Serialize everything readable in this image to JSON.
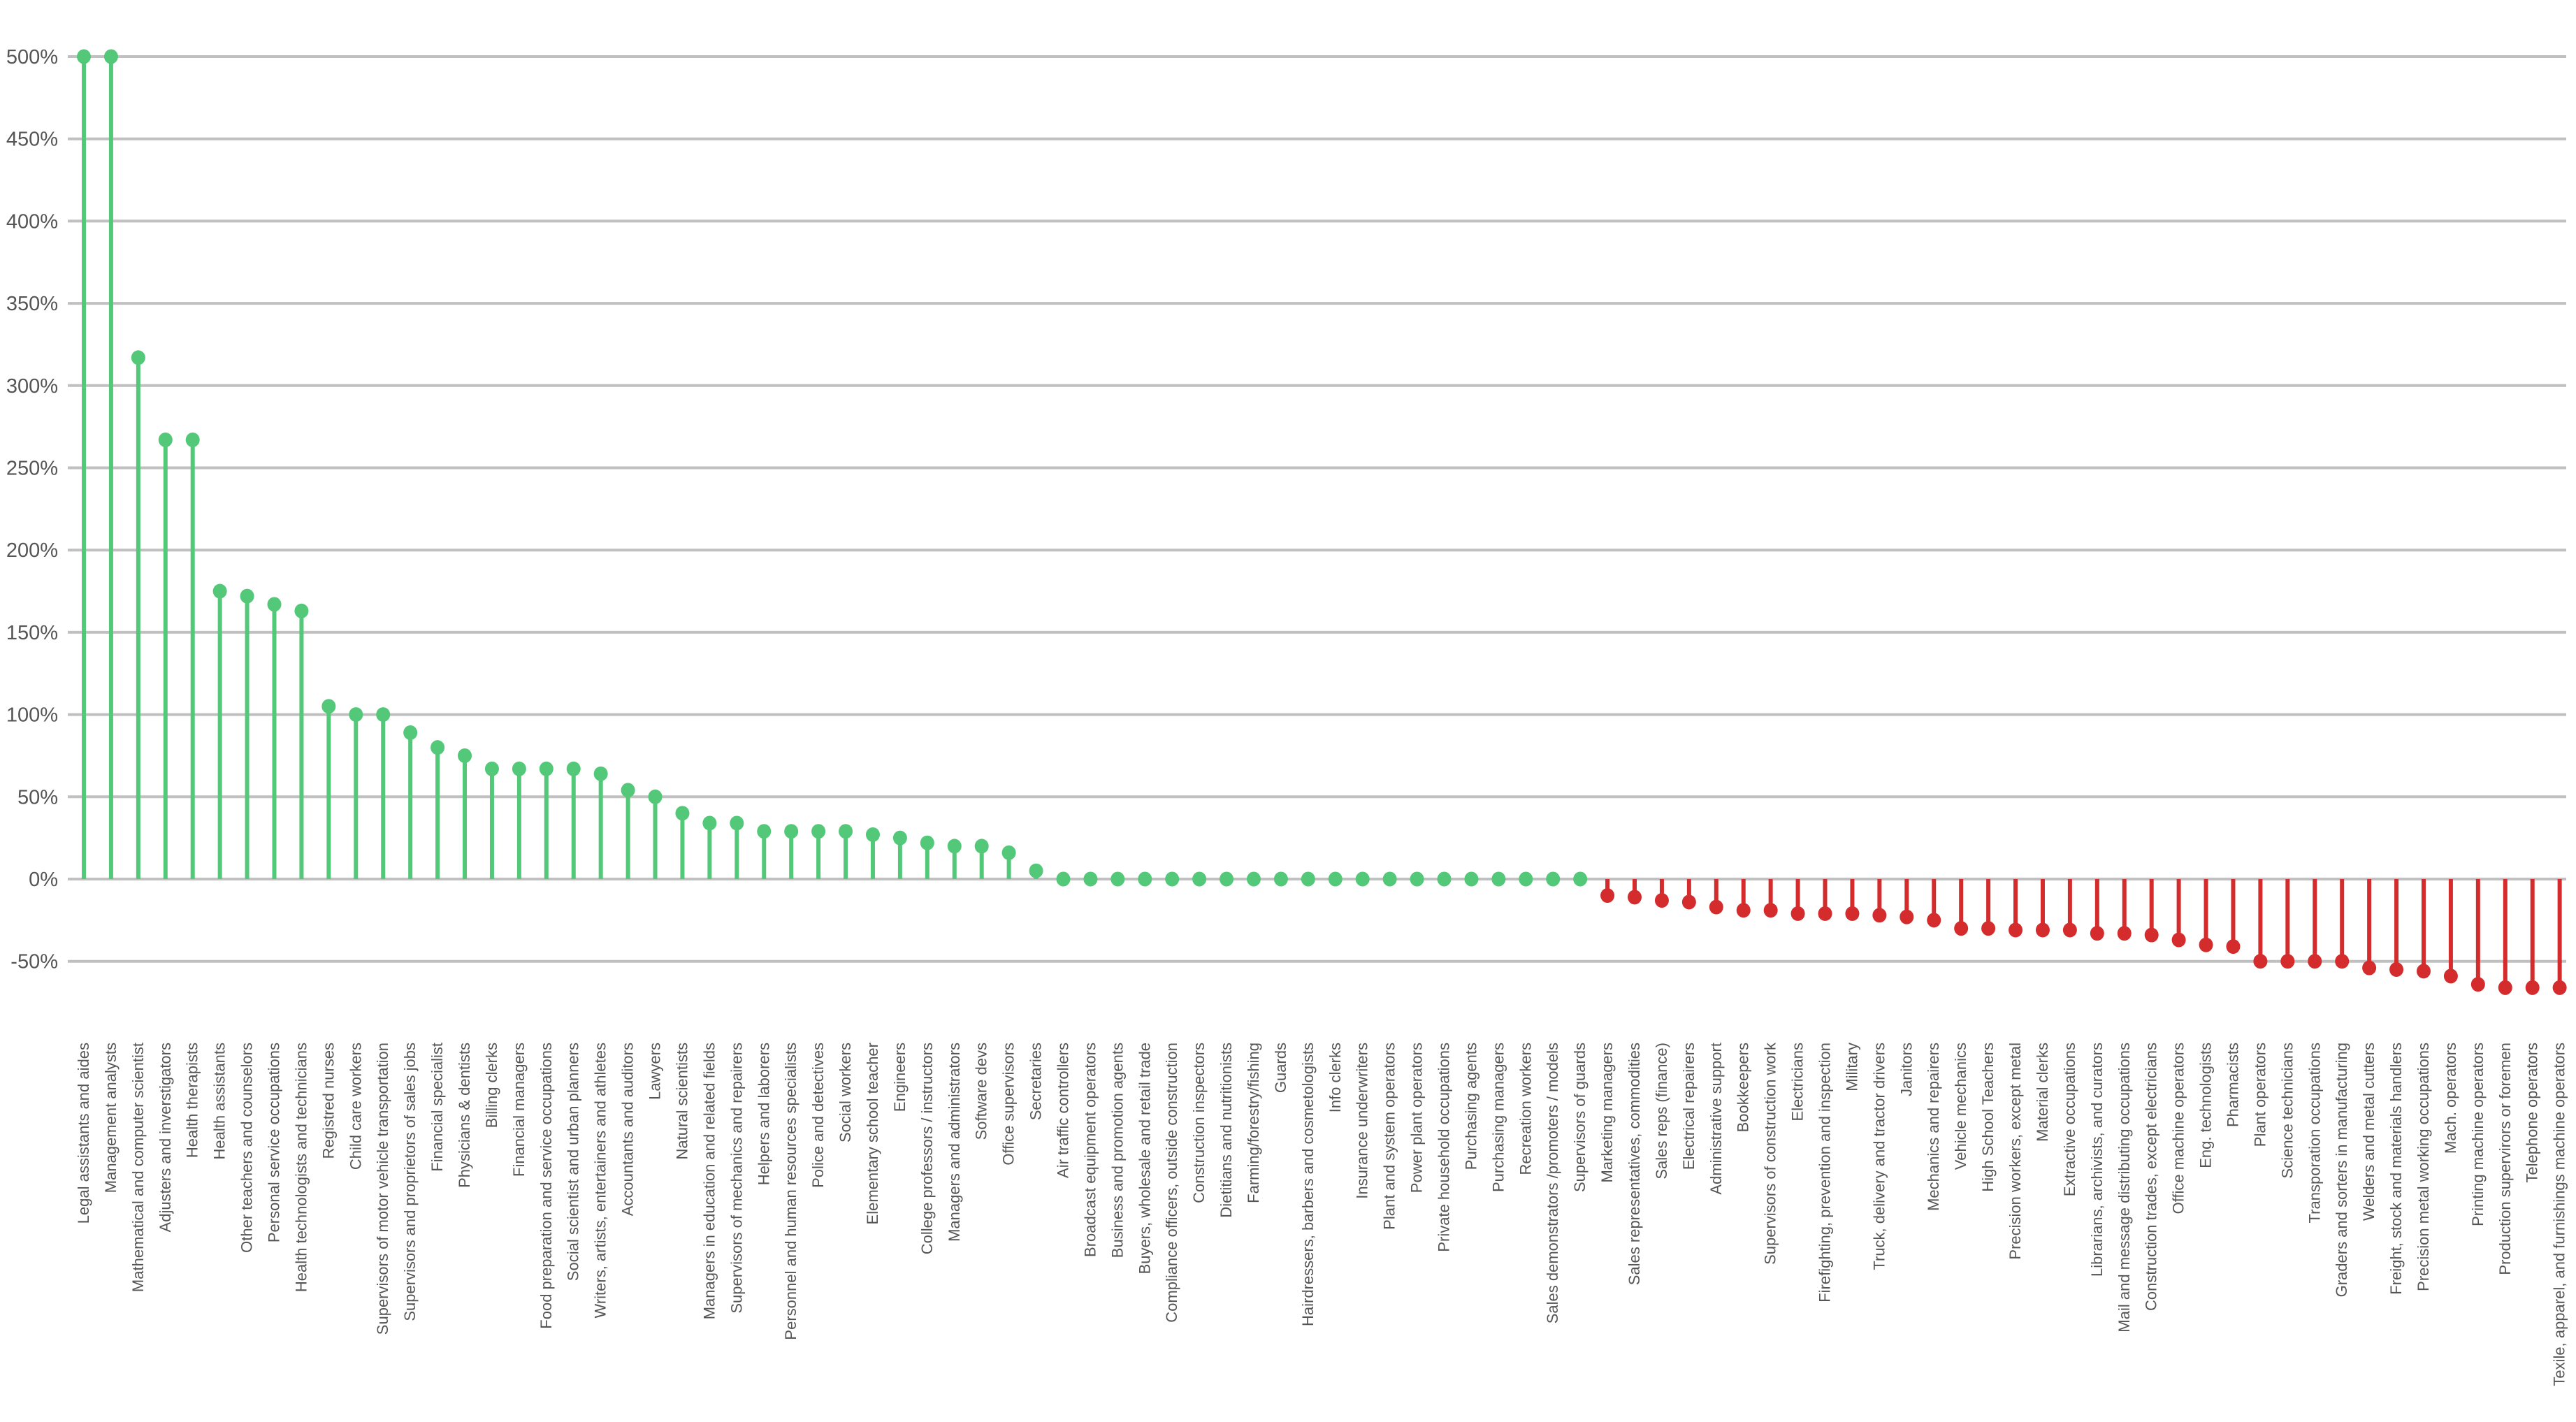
{
  "chart_data": {
    "type": "lollipop",
    "title": "",
    "xlabel": "",
    "ylabel": "",
    "ylim": [
      -60,
      500
    ],
    "yticks": [
      -50,
      0,
      50,
      100,
      150,
      200,
      250,
      300,
      350,
      400,
      450,
      500
    ],
    "ytick_labels": [
      "-50%",
      "0%",
      "50%",
      "100%",
      "150%",
      "200%",
      "250%",
      "300%",
      "350%",
      "400%",
      "450%",
      "500%"
    ],
    "grid": true,
    "legend": null,
    "colors": {
      "positive": "#52c878",
      "negative": "#d42c2c",
      "grid": "#c0c0c0",
      "text": "#555555"
    },
    "categories": [
      "Legal assistants and aides",
      "Management analysts",
      "Mathematical and computer scientist",
      "Adjusters and inverstigators",
      "Health therapists",
      "Health assistants",
      "Other teachers and counselors",
      "Personal service occupations",
      "Health technologists and technicians",
      "Registred nurses",
      "Child care workers",
      "Supervisors of motor vehicle transportation",
      "Supervisors and proprietors of sales jobs",
      "Financial specialist",
      "Physicians & dentists",
      "Billing clerks",
      "Financial managers",
      "Food preparation and service occupations",
      "Social scientist and urban planners",
      "Writers, artists, entertainers and athletes",
      "Accountants and auditors",
      "Lawyers",
      "Natural scientists",
      "Managers in education and related fields",
      "Supervisors of mechanics and repairers",
      "Helpers and laborers",
      "Personnel and human resources specialists",
      "Police and detectives",
      "Social workers",
      "Elementary school teacher",
      "Engineers",
      "College professors / instructors",
      "Managers and administrators",
      "Software devs",
      "Office supervisors",
      "Secretaries",
      "Air traffic controllers",
      "Broadcast equipment operators",
      "Business and promotion agents",
      "Buyers, wholesale and retail trade",
      "Compliance officers, outside construction",
      "Construction inspectors",
      "Dietitians and nutritionists",
      "Farming/forestry/fishing",
      "Guards",
      "Hairdressers, barbers and cosmetologists",
      "Info clerks",
      "Insurance underwriters",
      "Plant and system operators",
      "Power plant operators",
      "Private household occupations",
      "Purchasing agents",
      "Purchasing managers",
      "Recreation workers",
      "Sales demonstrators /promoters / models",
      "Supervisors of guards",
      "Marketing managers",
      "Sales representatives, commodities",
      "Sales reps (finance)",
      "Electrical repairers",
      "Administrative support",
      "Bookkeepers",
      "Supervisors of construction work",
      "Electricians",
      "Firefighting, prevention and inspection",
      "Military",
      "Truck, delivery and tractor drivers",
      "Janitors",
      "Mechanics and repairers",
      "Vehicle mechanics",
      "High School Teachers",
      "Precision workers, except metal",
      "Material clerks",
      "Extractive occupations",
      "Librarians, archivists, and curators",
      "Mail and message distributing occupations",
      "Construction trades, except electricians",
      "Office machine operators",
      "Eng. technologists",
      "Pharmacists",
      "Plant operators",
      "Science technicians",
      "Transporation occupations",
      "Graders and sorters in manufacturing",
      "Welders and metal cutters",
      "Freight, stock and materials handlers",
      "Precision metal working occupations",
      "Mach. operators",
      "Printing machine operators",
      "Production supervirors or foremen",
      "Telephone operators",
      "Texile, apparel, and furnishings machine operators"
    ],
    "values": [
      500,
      500,
      317,
      267,
      267,
      175,
      172,
      167,
      163,
      105,
      100,
      100,
      89,
      80,
      75,
      67,
      67,
      67,
      67,
      64,
      54,
      50,
      40,
      34,
      34,
      29,
      29,
      29,
      29,
      27,
      25,
      22,
      20,
      20,
      16,
      5,
      0,
      0,
      0,
      0,
      0,
      0,
      0,
      0,
      0,
      0,
      0,
      0,
      0,
      0,
      0,
      0,
      0,
      0,
      0,
      0,
      -10,
      -11,
      -13,
      -14,
      -17,
      -19,
      -19,
      -21,
      -21,
      -21,
      -22,
      -23,
      -25,
      -30,
      -30,
      -31,
      -31,
      -31,
      -33,
      -33,
      -34,
      -37,
      -40,
      -41,
      -50,
      -50,
      -50,
      -50,
      -54,
      -55,
      -56,
      -59,
      -64,
      -66,
      -66,
      -66
    ]
  }
}
